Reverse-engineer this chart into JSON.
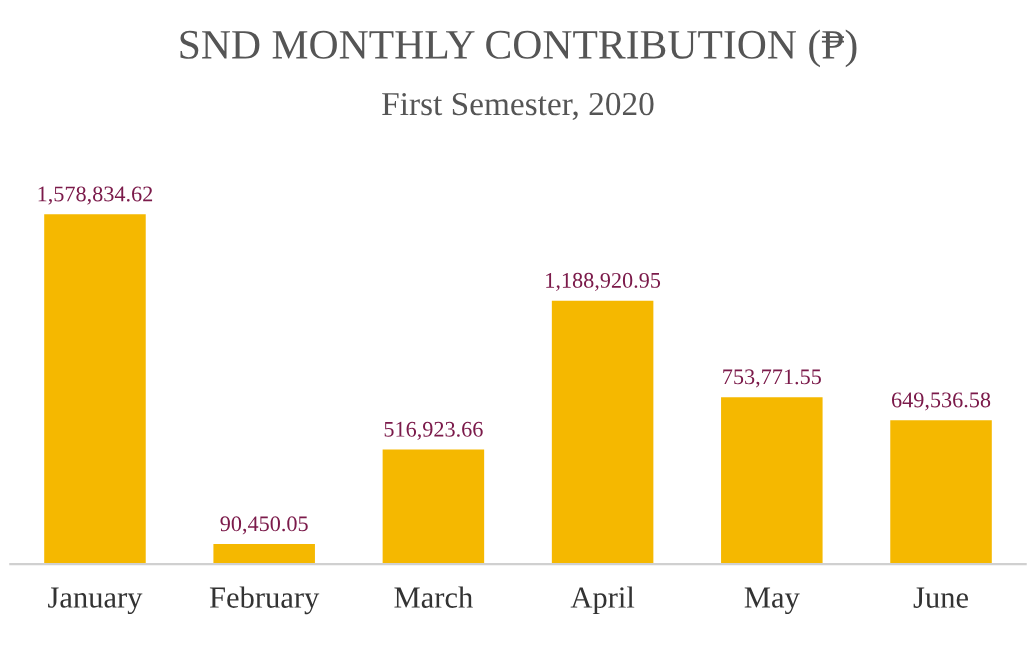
{
  "chart_data": {
    "type": "bar",
    "title": "SND MONTHLY CONTRIBUTION (₱)",
    "subtitle": "First Semester, 2020",
    "categories": [
      "January",
      "February",
      "March",
      "April",
      "May",
      "June"
    ],
    "values": [
      1578834.62,
      90450.05,
      516923.66,
      1188920.95,
      753771.55,
      649536.58
    ],
    "value_labels": [
      "1,578,834.62",
      "90,450.05",
      "516,923.66",
      "1,188,920.95",
      "753,771.55",
      "649,536.58"
    ],
    "color": "#f5b800",
    "grid": false,
    "legend": false
  }
}
